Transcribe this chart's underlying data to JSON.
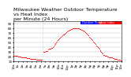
{
  "title": "Milwaukee Weather Outdoor Temperature",
  "subtitle1": "vs Heat Index",
  "subtitle2": "per Minute",
  "subtitle3": "(24 Hours)",
  "legend_temp_label": "Outdoor Temp",
  "legend_hi_label": "Heat Index",
  "legend_temp_color": "#0000ff",
  "legend_hi_color": "#ff0000",
  "dot_color": "#ff0000",
  "background_color": "#ffffff",
  "ylim": [
    10,
    95
  ],
  "xlim": [
    0,
    1440
  ],
  "yticks": [
    10,
    20,
    30,
    40,
    50,
    60,
    70,
    80,
    90
  ],
  "title_fontsize": 4.5,
  "tick_fontsize": 3.0,
  "temp_data_x": [
    0,
    10,
    20,
    30,
    40,
    50,
    60,
    70,
    80,
    90,
    100,
    110,
    120,
    130,
    140,
    150,
    160,
    170,
    180,
    190,
    200,
    210,
    220,
    230,
    240,
    250,
    260,
    270,
    280,
    290,
    300,
    310,
    320,
    330,
    340,
    350,
    360,
    370,
    380,
    400,
    410,
    420,
    430,
    440,
    450,
    460,
    470,
    480,
    490,
    500,
    510,
    520,
    530,
    540,
    550,
    560,
    570,
    580,
    590,
    600,
    610,
    620,
    630,
    640,
    650,
    660,
    670,
    680,
    690,
    700,
    710,
    720,
    730,
    740,
    750,
    760,
    770,
    780,
    790,
    800,
    810,
    820,
    830,
    840,
    850,
    860,
    870,
    880,
    890,
    900,
    910,
    920,
    930,
    940,
    950,
    960,
    970,
    980,
    990,
    1000,
    1010,
    1020,
    1030,
    1040,
    1050,
    1060,
    1070,
    1080,
    1090,
    1100,
    1110,
    1120,
    1130,
    1140,
    1150,
    1160,
    1170,
    1180,
    1190,
    1200,
    1210,
    1220,
    1230,
    1240,
    1250,
    1260,
    1270,
    1280,
    1290,
    1300,
    1310,
    1320,
    1330,
    1340,
    1350,
    1360,
    1370,
    1380,
    1390,
    1400,
    1410,
    1420,
    1430,
    1440
  ],
  "temp_data_y": [
    22,
    22,
    21,
    21,
    21,
    21,
    20,
    20,
    20,
    20,
    19,
    19,
    19,
    19,
    18,
    18,
    18,
    18,
    17,
    17,
    17,
    17,
    16,
    16,
    16,
    16,
    15,
    15,
    15,
    15,
    14,
    14,
    14,
    14,
    13,
    13,
    13,
    13,
    13,
    30,
    30,
    30,
    32,
    32,
    32,
    35,
    36,
    36,
    37,
    38,
    39,
    40,
    42,
    45,
    47,
    48,
    50,
    52,
    55,
    57,
    58,
    60,
    62,
    63,
    65,
    66,
    67,
    68,
    70,
    72,
    73,
    74,
    75,
    76,
    77,
    77,
    78,
    78,
    79,
    79,
    79,
    80,
    80,
    80,
    80,
    80,
    79,
    78,
    78,
    77,
    76,
    75,
    74,
    73,
    72,
    71,
    70,
    68,
    66,
    64,
    62,
    60,
    58,
    56,
    54,
    52,
    50,
    48,
    46,
    44,
    42,
    40,
    38,
    36,
    34,
    32,
    30,
    28,
    26,
    24,
    23,
    22,
    21,
    21,
    20,
    20,
    19,
    19,
    18,
    18,
    18,
    17,
    17,
    16,
    16,
    15,
    15,
    15,
    14,
    14,
    13,
    13,
    12,
    12
  ],
  "vline_x": 390,
  "grid_color": "#bbbbbb",
  "xtick_positions": [
    0,
    60,
    120,
    180,
    240,
    300,
    360,
    420,
    480,
    540,
    600,
    660,
    720,
    780,
    840,
    900,
    960,
    1020,
    1080,
    1140,
    1200,
    1260,
    1320,
    1380,
    1440
  ],
  "xtick_labels": [
    "12a",
    "1a",
    "2a",
    "3a",
    "4a",
    "5a",
    "6a",
    "7a",
    "8a",
    "9a",
    "10a",
    "11a",
    "12p",
    "1p",
    "2p",
    "3p",
    "4p",
    "5p",
    "6p",
    "7p",
    "8p",
    "9p",
    "10p",
    "11p",
    "12a"
  ]
}
